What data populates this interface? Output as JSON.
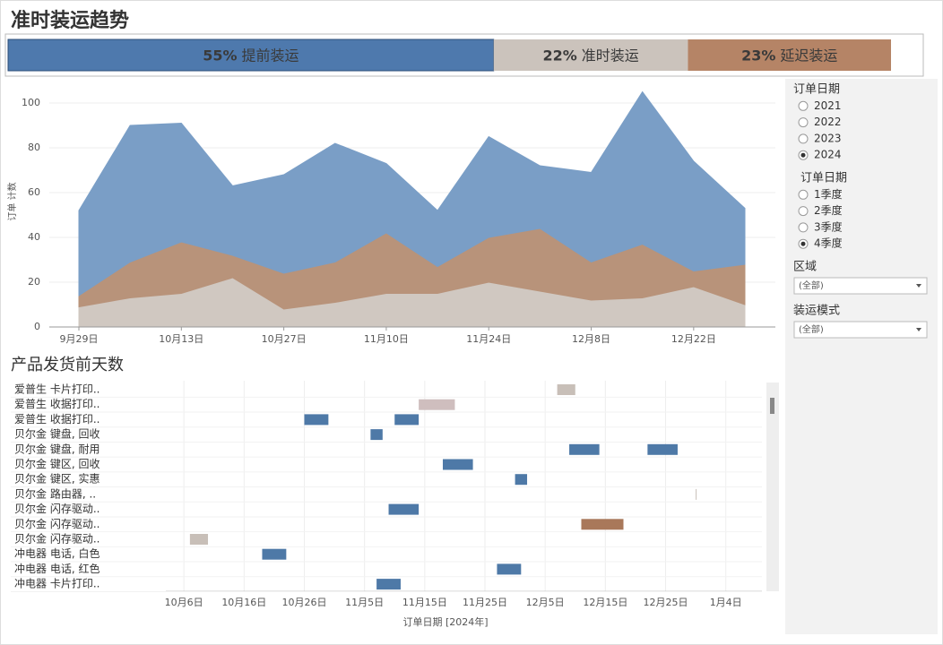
{
  "header": {
    "title": "准时装运趋势"
  },
  "chart_data": [
    {
      "type": "stacked-bar",
      "series": [
        {
          "name": "提前装运",
          "color": "#4e79ad",
          "values": [
            55
          ],
          "value_labels": [
            "55%"
          ]
        },
        {
          "name": "准时装运",
          "color": "#cbc3bc",
          "values": [
            22
          ],
          "value_labels": [
            "22%"
          ]
        },
        {
          "name": "延迟装运",
          "color": "#b58466",
          "values": [
            23
          ],
          "value_labels": [
            "23%"
          ]
        }
      ]
    },
    {
      "type": "stacked-area",
      "y_label": "订单 计数",
      "categories": [
        "9月29日",
        null,
        "10月13日",
        null,
        "10月27日",
        null,
        "11月10日",
        null,
        "11月24日",
        null,
        "12月8日",
        null,
        "12月22日",
        null
      ],
      "series": [
        {
          "color": "#d0c8c1",
          "values": [
            9,
            13,
            15,
            22,
            8,
            11,
            15,
            15,
            20,
            16,
            12,
            13,
            18,
            10
          ]
        },
        {
          "color": "#b8937a",
          "values": [
            5,
            16,
            23,
            10,
            16,
            18,
            27,
            12,
            20,
            28,
            17,
            24,
            7,
            18
          ]
        },
        {
          "color": "#7a9ec6",
          "values": [
            38,
            61,
            53,
            31,
            44,
            53,
            31,
            25,
            45,
            28,
            40,
            68,
            49,
            25
          ]
        }
      ],
      "ylim": [
        0,
        108
      ],
      "yticks": [
        0,
        20,
        40,
        60,
        80,
        100
      ],
      "grid": true
    },
    {
      "type": "gantt",
      "title": "产品发货前天数",
      "x_label": "订单日期 [2024年]",
      "xlim": [
        "2024-10-03",
        "2025-01-10"
      ],
      "xticks": [
        {
          "value": "2024-10-06",
          "label": "10月6日"
        },
        {
          "value": "2024-10-16",
          "label": "10月16日"
        },
        {
          "value": "2024-10-26",
          "label": "10月26日"
        },
        {
          "value": "2024-11-05",
          "label": "11月5日"
        },
        {
          "value": "2024-11-15",
          "label": "11月15日"
        },
        {
          "value": "2024-11-25",
          "label": "11月25日"
        },
        {
          "value": "2024-12-05",
          "label": "12月5日"
        },
        {
          "value": "2024-12-15",
          "label": "12月15日"
        },
        {
          "value": "2024-12-25",
          "label": "12月25日"
        },
        {
          "value": "2025-01-04",
          "label": "1月4日"
        }
      ],
      "grid": true,
      "rows": [
        {
          "label": "爱普生 卡片打印..",
          "bars": [
            {
              "start": "2024-12-07",
              "days": 3,
              "color": "#c8bfb8"
            }
          ]
        },
        {
          "label": "爱普生 收据打印..",
          "bars": [
            {
              "start": "2024-11-14",
              "days": 6,
              "color": "#cfbebe"
            }
          ]
        },
        {
          "label": "爱普生 收据打印..",
          "bars": [
            {
              "start": "2024-10-26",
              "days": 4,
              "color": "#4e79a7"
            },
            {
              "start": "2024-11-10",
              "days": 4,
              "color": "#4e79a7"
            }
          ]
        },
        {
          "label": "贝尔金 键盘, 回收",
          "bars": [
            {
              "start": "2024-11-06",
              "days": 2,
              "color": "#4e79a7"
            }
          ]
        },
        {
          "label": "贝尔金 键盘, 耐用",
          "bars": [
            {
              "start": "2024-12-09",
              "days": 5,
              "color": "#4e79a7"
            },
            {
              "start": "2024-12-22",
              "days": 5,
              "color": "#4e79a7"
            }
          ]
        },
        {
          "label": "贝尔金 键区, 回收",
          "bars": [
            {
              "start": "2024-11-18",
              "days": 5,
              "color": "#4e79a7"
            }
          ]
        },
        {
          "label": "贝尔金 键区, 实惠",
          "bars": [
            {
              "start": "2024-11-30",
              "days": 2,
              "color": "#4e79a7"
            }
          ]
        },
        {
          "label": "贝尔金 路由器, ..",
          "bars": [
            {
              "start": "2024-12-30",
              "days": 0,
              "color": "#c8bfb8"
            }
          ]
        },
        {
          "label": "贝尔金 闪存驱动..",
          "bars": [
            {
              "start": "2024-11-09",
              "days": 5,
              "color": "#4e79a7"
            }
          ]
        },
        {
          "label": "贝尔金 闪存驱动..",
          "bars": [
            {
              "start": "2024-12-11",
              "days": 7,
              "color": "#a9785a"
            }
          ]
        },
        {
          "label": "贝尔金 闪存驱动..",
          "bars": [
            {
              "start": "2024-10-07",
              "days": 3,
              "color": "#c8bfb8"
            }
          ]
        },
        {
          "label": "冲电器 电话, 白色",
          "bars": [
            {
              "start": "2024-10-19",
              "days": 4,
              "color": "#4e79a7"
            }
          ]
        },
        {
          "label": "冲电器 电话, 红色",
          "bars": [
            {
              "start": "2024-11-27",
              "days": 4,
              "color": "#4e79a7"
            }
          ]
        },
        {
          "label": "冲电器 卡片打印..",
          "bars": [
            {
              "start": "2024-11-07",
              "days": 4,
              "color": "#4e79a7"
            }
          ]
        }
      ]
    }
  ],
  "filters": [
    {
      "label": "订单日期",
      "type": "radio",
      "options": [
        {
          "label": "2021"
        },
        {
          "label": "2022"
        },
        {
          "label": "2023"
        },
        {
          "label": "2024",
          "checked": true
        }
      ]
    },
    {
      "label": "订单日期",
      "type": "radio",
      "options": [
        {
          "label": "1季度"
        },
        {
          "label": "2季度"
        },
        {
          "label": "3季度"
        },
        {
          "label": "4季度",
          "checked": true
        }
      ]
    },
    {
      "label": "区域",
      "type": "dropdown",
      "value": "(全部)"
    },
    {
      "label": "装运模式",
      "type": "dropdown",
      "value": "(全部)"
    }
  ]
}
